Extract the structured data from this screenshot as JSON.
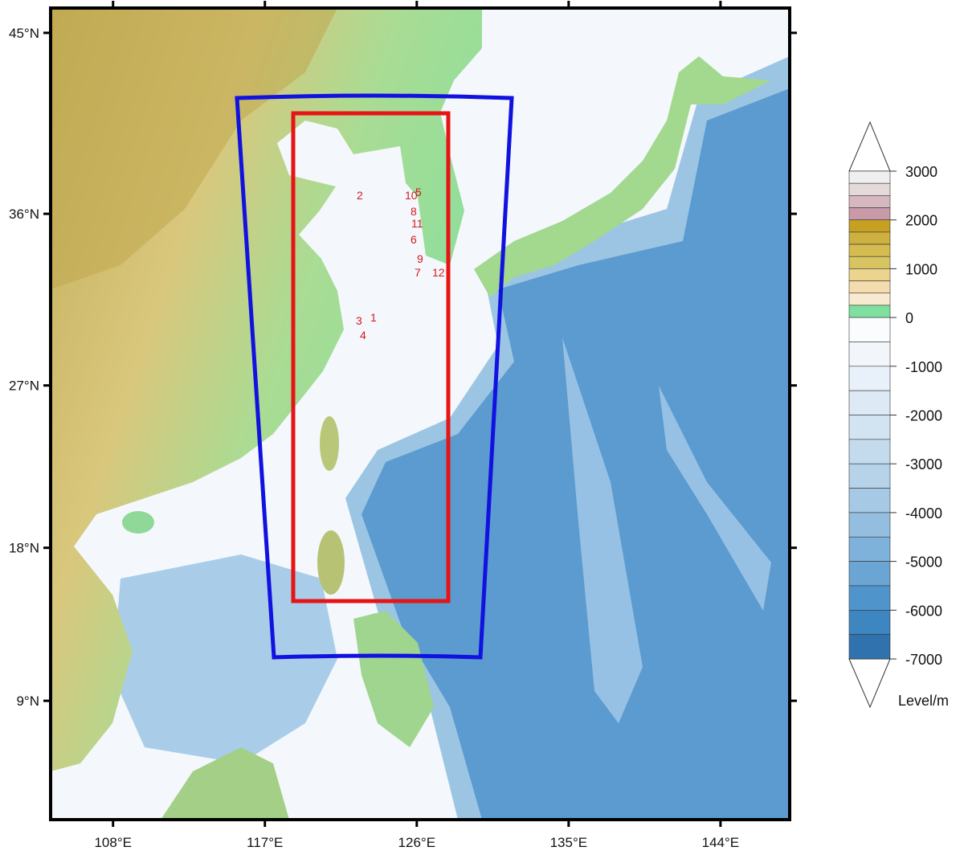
{
  "map": {
    "lonlim": [
      104.3,
      148.1
    ],
    "latlim": [
      1.6,
      46.2
    ],
    "lon_ticks": [
      {
        "value": 108,
        "label": "108°E"
      },
      {
        "value": 117,
        "label": "117°E"
      },
      {
        "value": 126,
        "label": "126°E"
      },
      {
        "value": 135,
        "label": "135°E"
      },
      {
        "value": 144,
        "label": "144°E"
      }
    ],
    "lat_ticks": [
      {
        "value": 45,
        "label": "45°N"
      },
      {
        "value": 36,
        "label": "36°N"
      },
      {
        "value": 27,
        "label": "27°N"
      },
      {
        "value": 18,
        "label": "18°N"
      },
      {
        "value": 9,
        "label": "9°N"
      }
    ],
    "stations": [
      "1",
      "2",
      "3",
      "4",
      "5",
      "6",
      "7",
      "8",
      "9",
      "10",
      "11",
      "12"
    ],
    "colorbar": {
      "label": "Level/m",
      "ticks": [
        3000,
        2000,
        1000,
        0,
        -1000,
        -2000,
        -3000,
        -4000,
        -5000,
        -6000,
        -7000
      ],
      "land_colors": [
        "#efefef",
        "#e4dada",
        "#d8b8c0",
        "#c99aa8",
        "#c6a020",
        "#cdb040",
        "#d4bc50",
        "#d8c460",
        "#ecd48c",
        "#f4dcae",
        "#f8ead0",
        "#7fe0a0"
      ],
      "ocean_colors": [
        "#fafcfe",
        "#f2f6fb",
        "#e8f0f9",
        "#dde9f5",
        "#d2e3f2",
        "#c4dbee",
        "#b6d3ea",
        "#a6c9e5",
        "#93bee0",
        "#7fb2da",
        "#6aa5d3",
        "#4f95cc",
        "#3d86c0",
        "#2f72ad"
      ]
    }
  }
}
